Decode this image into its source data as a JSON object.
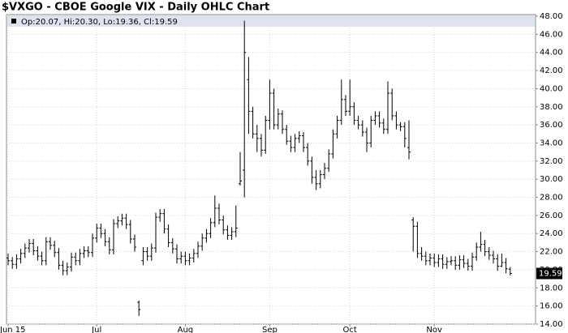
{
  "chart_data": {
    "type": "ohlc",
    "title": "$VXGO - CBOE Google VIX - Daily OHLC Chart",
    "legend": "Op:20.07, Hi:20.30, Lo:19.36, Cl:19.59",
    "color": "#000000",
    "ylim": [
      14,
      48
    ],
    "yticks": [
      {
        "value": 14,
        "label": "14.00"
      },
      {
        "value": 16,
        "label": "16.00"
      },
      {
        "value": 18,
        "label": "18.00"
      },
      {
        "value": 20,
        "label": "20.00"
      },
      {
        "value": 22,
        "label": "22.00"
      },
      {
        "value": 24,
        "label": "24.00"
      },
      {
        "value": 26,
        "label": "26.00"
      },
      {
        "value": 28,
        "label": "28.00"
      },
      {
        "value": 30,
        "label": "30.00"
      },
      {
        "value": 32,
        "label": "32.00"
      },
      {
        "value": 34,
        "label": "34.00"
      },
      {
        "value": 36,
        "label": "36.00"
      },
      {
        "value": 38,
        "label": "38.00"
      },
      {
        "value": 40,
        "label": "40.00"
      },
      {
        "value": 42,
        "label": "42.00"
      },
      {
        "value": 44,
        "label": "44.00"
      },
      {
        "value": 46,
        "label": "46.00"
      },
      {
        "value": 48,
        "label": "48.00"
      }
    ],
    "xticks": [
      {
        "value": 0,
        "label": "Jun 15"
      },
      {
        "value": 21,
        "label": "Jul"
      },
      {
        "value": 42,
        "label": "Aug"
      },
      {
        "value": 62,
        "label": "Sep"
      },
      {
        "value": 81,
        "label": "Oct"
      },
      {
        "value": 101,
        "label": "Nov"
      }
    ],
    "grid": true,
    "last_price": 19.59,
    "last_price_label": "19.59",
    "ohlc": [
      [
        21.3,
        21.8,
        20.5,
        21.0
      ],
      [
        21.0,
        21.4,
        20.1,
        20.6
      ],
      [
        20.6,
        21.7,
        20.1,
        21.2
      ],
      [
        21.2,
        22.3,
        20.7,
        21.8
      ],
      [
        21.8,
        22.9,
        21.3,
        22.4
      ],
      [
        22.4,
        23.4,
        21.9,
        22.9
      ],
      [
        22.9,
        23.4,
        21.6,
        22.1
      ],
      [
        22.1,
        22.6,
        21.0,
        21.5
      ],
      [
        21.5,
        22.0,
        20.5,
        21.0
      ],
      [
        21.0,
        23.6,
        20.5,
        23.1
      ],
      [
        23.1,
        23.6,
        22.2,
        22.7
      ],
      [
        22.7,
        23.2,
        21.4,
        21.9
      ],
      [
        21.9,
        22.4,
        20.0,
        20.5
      ],
      [
        20.5,
        21.0,
        19.4,
        19.9
      ],
      [
        19.9,
        20.8,
        19.4,
        20.3
      ],
      [
        20.3,
        21.9,
        19.8,
        21.4
      ],
      [
        21.4,
        21.9,
        20.5,
        21.0
      ],
      [
        21.0,
        22.3,
        20.5,
        21.8
      ],
      [
        21.8,
        22.6,
        21.3,
        22.1
      ],
      [
        22.1,
        22.6,
        21.4,
        21.9
      ],
      [
        21.9,
        24.0,
        21.4,
        23.5
      ],
      [
        23.5,
        25.1,
        23.0,
        24.6
      ],
      [
        24.6,
        25.1,
        23.5,
        24.0
      ],
      [
        24.0,
        24.5,
        22.6,
        23.1
      ],
      [
        23.1,
        23.6,
        21.7,
        22.2
      ],
      [
        22.2,
        25.6,
        21.7,
        25.1
      ],
      [
        25.1,
        25.9,
        24.6,
        25.4
      ],
      [
        25.4,
        26.2,
        24.9,
        25.7
      ],
      [
        25.7,
        26.2,
        24.5,
        25.0
      ],
      [
        25.0,
        25.5,
        22.9,
        23.4
      ],
      [
        23.4,
        23.9,
        22.0,
        22.5
      ],
      [
        16.4,
        16.6,
        14.9,
        15.6
      ],
      [
        21.0,
        22.5,
        20.5,
        22.0
      ],
      [
        22.0,
        22.5,
        21.0,
        21.5
      ],
      [
        21.5,
        22.9,
        21.0,
        22.4
      ],
      [
        22.4,
        26.3,
        21.9,
        25.8
      ],
      [
        25.8,
        26.7,
        25.3,
        26.2
      ],
      [
        26.2,
        26.7,
        24.0,
        24.5
      ],
      [
        24.5,
        25.0,
        22.5,
        23.0
      ],
      [
        23.0,
        23.5,
        21.8,
        22.3
      ],
      [
        22.3,
        22.8,
        20.7,
        21.2
      ],
      [
        21.2,
        22.0,
        20.7,
        21.5
      ],
      [
        21.5,
        22.0,
        20.5,
        21.0
      ],
      [
        21.0,
        21.8,
        20.5,
        21.3
      ],
      [
        21.3,
        22.3,
        20.8,
        21.8
      ],
      [
        21.8,
        23.1,
        21.3,
        22.6
      ],
      [
        22.6,
        24.0,
        22.1,
        23.5
      ],
      [
        23.5,
        24.5,
        23.0,
        24.0
      ],
      [
        24.0,
        25.7,
        23.5,
        25.2
      ],
      [
        25.2,
        28.2,
        24.7,
        26.8
      ],
      [
        26.8,
        27.3,
        25.0,
        25.5
      ],
      [
        25.5,
        26.0,
        23.9,
        24.4
      ],
      [
        24.4,
        24.9,
        23.3,
        23.8
      ],
      [
        23.8,
        24.7,
        23.3,
        24.2
      ],
      [
        24.2,
        27.1,
        23.6,
        24.6
      ],
      [
        29.5,
        33.0,
        29.3,
        29.8
      ],
      [
        31.0,
        47.5,
        28.0,
        44.0
      ],
      [
        41.0,
        43.5,
        35.0,
        37.5
      ],
      [
        37.5,
        38.0,
        34.5,
        35.0
      ],
      [
        35.0,
        36.0,
        33.0,
        34.5
      ],
      [
        34.5,
        35.0,
        32.5,
        33.2
      ],
      [
        33.2,
        37.0,
        32.8,
        36.5
      ],
      [
        36.5,
        41.0,
        35.5,
        39.5
      ],
      [
        39.5,
        40.0,
        35.5,
        36.0
      ],
      [
        36.0,
        37.8,
        35.5,
        37.2
      ],
      [
        37.2,
        37.6,
        35.0,
        35.5
      ],
      [
        35.5,
        36.0,
        33.8,
        34.2
      ],
      [
        34.2,
        34.8,
        33.0,
        33.5
      ],
      [
        33.5,
        35.0,
        33.0,
        34.5
      ],
      [
        34.5,
        35.3,
        34.0,
        34.8
      ],
      [
        34.8,
        35.2,
        33.0,
        33.5
      ],
      [
        33.5,
        34.0,
        31.5,
        32.0
      ],
      [
        32.0,
        32.5,
        29.5,
        30.2
      ],
      [
        30.2,
        31.0,
        28.8,
        29.5
      ],
      [
        29.5,
        31.0,
        29.0,
        30.5
      ],
      [
        30.5,
        31.8,
        30.0,
        31.2
      ],
      [
        31.2,
        33.3,
        30.8,
        32.8
      ],
      [
        32.8,
        35.5,
        32.3,
        35.0
      ],
      [
        35.0,
        37.0,
        34.5,
        36.5
      ],
      [
        36.5,
        41.0,
        36.0,
        38.8
      ],
      [
        38.8,
        39.3,
        37.0,
        37.5
      ],
      [
        37.5,
        41.0,
        37.0,
        38.0
      ],
      [
        38.0,
        38.5,
        36.0,
        36.5
      ],
      [
        36.5,
        37.0,
        35.5,
        36.0
      ],
      [
        36.0,
        36.5,
        34.7,
        35.2
      ],
      [
        35.2,
        35.7,
        33.0,
        34.0
      ],
      [
        34.0,
        37.0,
        33.5,
        36.5
      ],
      [
        36.5,
        37.5,
        36.0,
        37.0
      ],
      [
        37.0,
        37.5,
        35.7,
        36.2
      ],
      [
        36.2,
        36.7,
        35.0,
        35.5
      ],
      [
        35.5,
        40.8,
        35.0,
        39.5
      ],
      [
        39.5,
        40.0,
        36.5,
        37.0
      ],
      [
        37.0,
        37.5,
        35.5,
        36.0
      ],
      [
        36.0,
        36.3,
        35.3,
        35.8
      ],
      [
        35.8,
        36.3,
        33.5,
        34.5
      ],
      [
        33.5,
        36.5,
        32.2,
        33.0
      ],
      [
        25.5,
        25.8,
        22.0,
        24.8
      ],
      [
        24.8,
        25.3,
        21.3,
        21.8
      ],
      [
        21.8,
        22.5,
        21.0,
        21.5
      ],
      [
        21.5,
        22.0,
        20.5,
        21.0
      ],
      [
        21.0,
        21.8,
        20.5,
        21.3
      ],
      [
        21.3,
        21.8,
        20.3,
        20.8
      ],
      [
        20.8,
        21.7,
        20.3,
        21.2
      ],
      [
        21.2,
        21.7,
        20.1,
        20.6
      ],
      [
        20.6,
        21.4,
        20.1,
        20.9
      ],
      [
        20.9,
        21.5,
        20.5,
        21.0
      ],
      [
        21.0,
        21.5,
        20.0,
        20.5
      ],
      [
        20.5,
        21.6,
        20.0,
        21.1
      ],
      [
        21.1,
        21.6,
        20.2,
        20.7
      ],
      [
        20.7,
        21.2,
        19.9,
        20.4
      ],
      [
        20.4,
        21.9,
        19.9,
        21.4
      ],
      [
        21.4,
        23.0,
        21.0,
        22.5
      ],
      [
        22.5,
        24.2,
        22.0,
        22.8
      ],
      [
        22.8,
        23.3,
        21.5,
        22.0
      ],
      [
        22.0,
        22.5,
        21.1,
        21.6
      ],
      [
        21.6,
        22.1,
        20.7,
        21.2
      ],
      [
        21.2,
        21.7,
        19.9,
        20.4
      ],
      [
        20.4,
        21.8,
        20.3,
        20.8
      ],
      [
        20.8,
        21.3,
        19.6,
        20.1
      ],
      [
        20.07,
        20.3,
        19.36,
        19.59
      ]
    ]
  }
}
